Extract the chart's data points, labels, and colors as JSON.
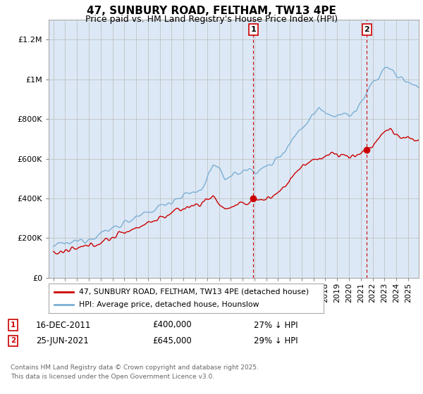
{
  "title": "47, SUNBURY ROAD, FELTHAM, TW13 4PE",
  "subtitle": "Price paid vs. HM Land Registry's House Price Index (HPI)",
  "ylim": [
    0,
    1300000
  ],
  "yticks": [
    0,
    200000,
    400000,
    600000,
    800000,
    1000000,
    1200000
  ],
  "ytick_labels": [
    "£0",
    "£200K",
    "£400K",
    "£600K",
    "£800K",
    "£1M",
    "£1.2M"
  ],
  "hpi_color": "#7bafd4",
  "price_color": "#cc0000",
  "sale1_price": 400000,
  "sale1_date": "16-DEC-2011",
  "sale1_year": 2011.958,
  "sale2_price": 645000,
  "sale2_date": "25-JUN-2021",
  "sale2_year": 2021.479,
  "legend_entry1": "47, SUNBURY ROAD, FELTHAM, TW13 4PE (detached house)",
  "legend_entry2": "HPI: Average price, detached house, Hounslow",
  "footnote": "Contains HM Land Registry data © Crown copyright and database right 2025.\nThis data is licensed under the Open Government Licence v3.0.",
  "background_color": "#dce8f5",
  "plot_bg_color": "#ffffff",
  "fill_color": "#dce8f5",
  "title_fontsize": 11,
  "subtitle_fontsize": 9
}
